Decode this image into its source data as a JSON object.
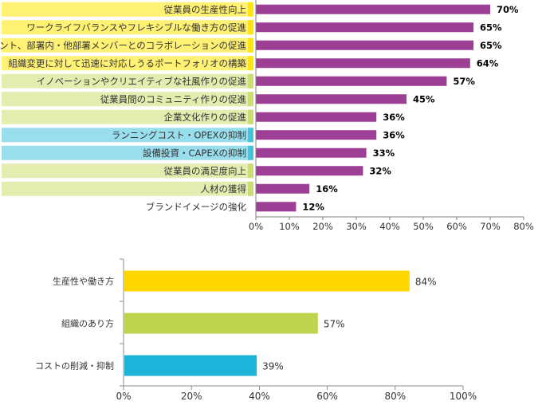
{
  "chart_data": [
    {
      "type": "bar",
      "orientation": "horizontal",
      "categories": [
        "従業員の生産性向上",
        "ワークライフバランスやフレキシブルな働き方の促進",
        "クライアント、部署内・他部署メンバーとのコラボレーションの促進",
        "組織変更に対して迅速に対応しうるポートフォリオの構築",
        "イノベーションやクリエイティブな社風作りの促進",
        "従業員間のコミュニティ作りの促進",
        "企業文化作りの促進",
        "ランニングコスト・OPEXの抑制",
        "設備投資・CAPEXの抑制",
        "従業員の満足度向上",
        "人材の獲得",
        "ブランドイメージの強化"
      ],
      "values": [
        70,
        65,
        65,
        64,
        57,
        45,
        36,
        36,
        33,
        32,
        16,
        12
      ],
      "value_labels": [
        "70%",
        "65%",
        "65%",
        "64%",
        "57%",
        "45%",
        "36%",
        "36%",
        "33%",
        "32%",
        "16%",
        "12%"
      ],
      "label_group_colors": [
        "#ffe600",
        "#ffe600",
        "#ffe600",
        "#ffe600",
        "#cddc6e",
        "#cddc6e",
        "#cddc6e",
        "#45c3de",
        "#45c3de",
        "#cddc6e",
        "#cddc6e",
        "#ffffff"
      ],
      "bar_color": "#9e3f96",
      "xlim": [
        0,
        80
      ],
      "xticks": [
        "0%",
        "10%",
        "20%",
        "30%",
        "40%",
        "50%",
        "60%",
        "70%",
        "80%"
      ],
      "grid": false
    },
    {
      "type": "bar",
      "orientation": "horizontal",
      "categories": [
        "生産性や働き方",
        "組織のあり方",
        "コストの削減・抑制"
      ],
      "values": [
        84,
        57,
        39
      ],
      "value_labels": [
        "84%",
        "57%",
        "39%"
      ],
      "colors": [
        "#ffd600",
        "#bed44f",
        "#1eb3d8"
      ],
      "xlim": [
        0,
        100
      ],
      "xticks": [
        "0%",
        "20%",
        "40%",
        "60%",
        "80%",
        "100%"
      ],
      "grid": false
    }
  ]
}
